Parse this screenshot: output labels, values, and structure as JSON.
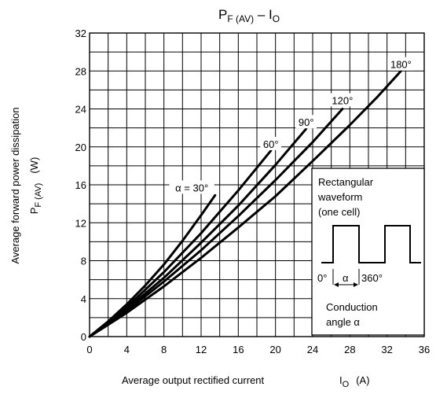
{
  "chart_data": {
    "type": "line",
    "title": "P_F (AV) – I_O",
    "title_parts": {
      "p": "P",
      "p_sub": "F (AV)",
      "dash": " – I",
      "i_sub": "O"
    },
    "xlabel": "Average output rectified current",
    "xlabel_sym": {
      "main": "I",
      "sub": "O",
      "unit": "(A)"
    },
    "ylabel_line1": "Average forward power dissipation",
    "ylabel_sym": {
      "main": "P",
      "sub": "F (AV)",
      "unit": "(W)"
    },
    "xlim": [
      0,
      36
    ],
    "ylim": [
      0,
      32
    ],
    "xticks": [
      0,
      4,
      8,
      12,
      16,
      20,
      24,
      28,
      32,
      36
    ],
    "yticks": [
      0,
      4,
      8,
      12,
      16,
      20,
      24,
      28,
      32
    ],
    "minor_x_step": 2,
    "minor_y_step": 2,
    "grid": true,
    "series": [
      {
        "name": "α = 30°",
        "x": [
          0,
          2,
          4,
          6,
          8,
          10,
          12,
          13.5
        ],
        "y": [
          0,
          1.6,
          3.4,
          5.4,
          7.6,
          10.1,
          12.8,
          14.9
        ]
      },
      {
        "name": "60°",
        "x": [
          0,
          4,
          8,
          12,
          16,
          19.5
        ],
        "y": [
          0,
          3.1,
          6.8,
          10.9,
          15.4,
          19.6
        ]
      },
      {
        "name": "90°",
        "x": [
          0,
          4,
          8,
          12,
          16,
          20,
          23.3
        ],
        "y": [
          0,
          2.9,
          6.2,
          9.9,
          13.8,
          18.1,
          21.9
        ]
      },
      {
        "name": "120°",
        "x": [
          0,
          4,
          8,
          12,
          16,
          20,
          24,
          27.2
        ],
        "y": [
          0,
          2.7,
          5.8,
          9.1,
          12.7,
          16.5,
          20.5,
          24.0
        ]
      },
      {
        "name": "180°",
        "x": [
          0,
          4,
          8,
          12,
          16,
          20,
          24,
          28,
          31,
          33.5
        ],
        "y": [
          0,
          2.5,
          5.3,
          8.3,
          11.5,
          14.8,
          18.5,
          22.3,
          25.3,
          28.0
        ]
      }
    ],
    "series_labels": [
      {
        "text": "α = 30°",
        "x": 11.0,
        "y": 15.3
      },
      {
        "text": "60°",
        "x": 19.5,
        "y": 19.9
      },
      {
        "text": "90°",
        "x": 23.3,
        "y": 22.2
      },
      {
        "text": "120°",
        "x": 27.2,
        "y": 24.5
      },
      {
        "text": "180°",
        "x": 33.5,
        "y": 28.3
      }
    ],
    "inset": {
      "line1": "Rectangular",
      "line2": "waveform",
      "line3": "(one cell)",
      "deg0": "0°",
      "alpha": "α",
      "deg360": "360°",
      "cond1": "Conduction",
      "cond2": "angle α"
    }
  }
}
